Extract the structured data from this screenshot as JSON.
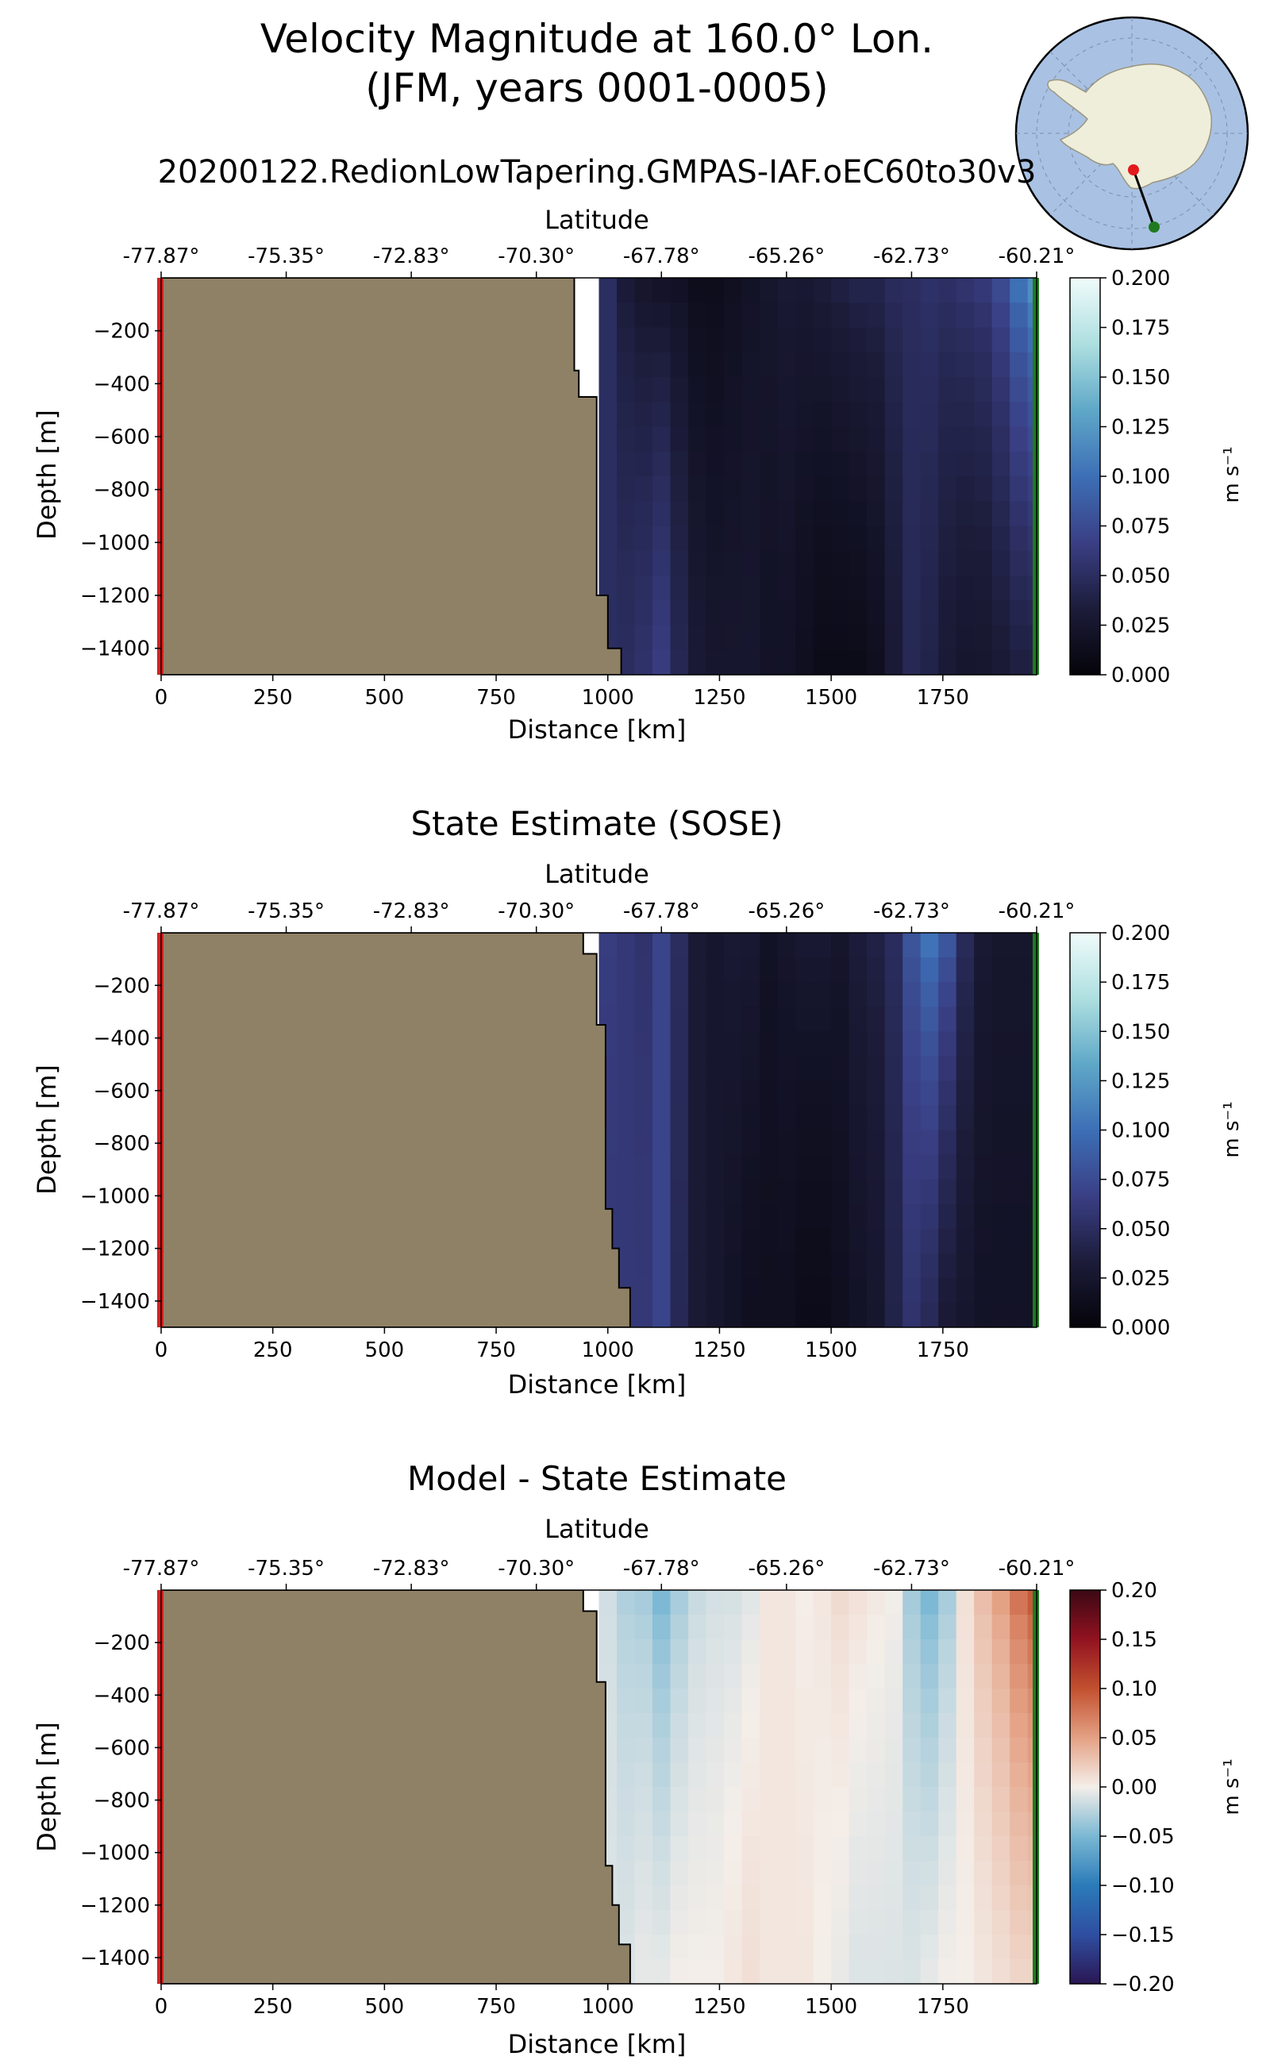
{
  "figure": {
    "title_line1": "Velocity Magnitude at 160.0° Lon.",
    "title_line2": "(JFM, years 0001-0005)",
    "colors": {
      "land": "#8f8165",
      "start_marker": "#d62020",
      "end_marker": "#1f7a1f",
      "ocean_map": "#a9c1e3",
      "antarctica": "#efeeda",
      "speed_cmap": [
        "#05040a",
        "#1c1c3a",
        "#3a3f85",
        "#3d6fb6",
        "#5fa8c8",
        "#aedfe0",
        "#f0fbfb"
      ],
      "diff_cmap": [
        "#2a1753",
        "#2f4ea1",
        "#2b7bb9",
        "#7ab8d3",
        "#f4eee9",
        "#e4a184",
        "#c2502f",
        "#921220",
        "#3b0814"
      ]
    }
  },
  "inset_map": {
    "projection": "south-polar-stereographic",
    "section_start": "red-dot",
    "section_end": "green-dot"
  },
  "chart_data": [
    {
      "type": "heatmap",
      "title": "20200122.RedionLowTapering.GMPAS-IAF.oEC60to30v3",
      "xlabel": "Distance [km]",
      "xlabel_top": "Latitude",
      "ylabel": "Depth [m]",
      "xlim": [
        0,
        1960
      ],
      "ylim": [
        -1500,
        0
      ],
      "x_ticks": [
        0,
        250,
        500,
        750,
        1000,
        1250,
        1500,
        1750
      ],
      "x_tick_labels": [
        "0",
        "250",
        "500",
        "750",
        "1000",
        "1250",
        "1500",
        "1750"
      ],
      "lat_ticks_km": [
        0,
        280,
        560,
        840,
        1120,
        1400,
        1680,
        1960
      ],
      "lat_tick_labels": [
        "-77.87°",
        "-75.35°",
        "-72.83°",
        "-70.30°",
        "-67.78°",
        "-65.26°",
        "-62.73°",
        "-60.21°"
      ],
      "y_ticks": [
        -200,
        -400,
        -600,
        -800,
        -1000,
        -1200,
        -1400
      ],
      "y_tick_labels": [
        "−200",
        "−400",
        "−600",
        "−800",
        "−1000",
        "−1200",
        "−1400"
      ],
      "colorbar": {
        "label": "m s⁻¹",
        "range": [
          0,
          0.2
        ],
        "ticks": [
          "0.000",
          "0.025",
          "0.050",
          "0.075",
          "0.100",
          "0.125",
          "0.150",
          "0.175",
          "0.200"
        ],
        "cmap": "speed"
      },
      "land_profile": [
        [
          0,
          925
        ],
        [
          -350,
          925
        ],
        [
          -350,
          935
        ],
        [
          -450,
          935
        ],
        [
          -450,
          975
        ],
        [
          -1200,
          975
        ],
        [
          -1200,
          1000
        ],
        [
          -1400,
          1000
        ],
        [
          -1400,
          1030
        ],
        [
          -1500,
          1030
        ]
      ],
      "profiles": {
        "x": [
          1000,
          1040,
          1080,
          1120,
          1160,
          1200,
          1240,
          1280,
          1320,
          1360,
          1400,
          1440,
          1480,
          1520,
          1560,
          1600,
          1640,
          1680,
          1720,
          1760,
          1800,
          1840,
          1880,
          1920,
          1960
        ],
        "top": [
          0.05,
          0.03,
          0.02,
          0.015,
          0.015,
          0.01,
          0.01,
          0.015,
          0.02,
          0.025,
          0.03,
          0.03,
          0.035,
          0.04,
          0.045,
          0.045,
          0.05,
          0.05,
          0.055,
          0.055,
          0.06,
          0.065,
          0.08,
          0.11,
          0.13
        ],
        "bottom": [
          0.05,
          0.05,
          0.055,
          0.065,
          0.045,
          0.03,
          0.025,
          0.025,
          0.025,
          0.02,
          0.02,
          0.015,
          0.01,
          0.01,
          0.01,
          0.015,
          0.03,
          0.045,
          0.04,
          0.03,
          0.025,
          0.025,
          0.03,
          0.035,
          0.035
        ]
      }
    },
    {
      "type": "heatmap",
      "title": "State Estimate (SOSE)",
      "xlabel": "Distance [km]",
      "xlabel_top": "Latitude",
      "ylabel": "Depth [m]",
      "xlim": [
        0,
        1960
      ],
      "ylim": [
        -1500,
        0
      ],
      "x_ticks": [
        0,
        250,
        500,
        750,
        1000,
        1250,
        1500,
        1750
      ],
      "x_tick_labels": [
        "0",
        "250",
        "500",
        "750",
        "1000",
        "1250",
        "1500",
        "1750"
      ],
      "lat_ticks_km": [
        0,
        280,
        560,
        840,
        1120,
        1400,
        1680,
        1960
      ],
      "lat_tick_labels": [
        "-77.87°",
        "-75.35°",
        "-72.83°",
        "-70.30°",
        "-67.78°",
        "-65.26°",
        "-62.73°",
        "-60.21°"
      ],
      "y_ticks": [
        -200,
        -400,
        -600,
        -800,
        -1000,
        -1200,
        -1400
      ],
      "y_tick_labels": [
        "−200",
        "−400",
        "−600",
        "−800",
        "−1000",
        "−1200",
        "−1400"
      ],
      "colorbar": {
        "label": "m s⁻¹",
        "range": [
          0,
          0.2
        ],
        "ticks": [
          "0.000",
          "0.025",
          "0.050",
          "0.075",
          "0.100",
          "0.125",
          "0.150",
          "0.175",
          "0.200"
        ],
        "cmap": "speed"
      },
      "land_profile": [
        [
          0,
          945
        ],
        [
          -80,
          945
        ],
        [
          -80,
          975
        ],
        [
          -350,
          975
        ],
        [
          -350,
          995
        ],
        [
          -1050,
          995
        ],
        [
          -1050,
          1010
        ],
        [
          -1200,
          1010
        ],
        [
          -1200,
          1025
        ],
        [
          -1350,
          1025
        ],
        [
          -1350,
          1050
        ],
        [
          -1500,
          1050
        ]
      ],
      "profiles": {
        "x": [
          1000,
          1040,
          1080,
          1120,
          1160,
          1200,
          1240,
          1280,
          1320,
          1360,
          1400,
          1440,
          1480,
          1520,
          1560,
          1600,
          1640,
          1680,
          1720,
          1760,
          1800,
          1840,
          1880,
          1920,
          1960
        ],
        "top": [
          0.065,
          0.06,
          0.055,
          0.07,
          0.05,
          0.03,
          0.025,
          0.03,
          0.03,
          0.02,
          0.025,
          0.03,
          0.03,
          0.025,
          0.035,
          0.04,
          0.05,
          0.085,
          0.11,
          0.09,
          0.05,
          0.03,
          0.025,
          0.025,
          0.025
        ],
        "bottom": [
          0.06,
          0.06,
          0.06,
          0.07,
          0.045,
          0.03,
          0.025,
          0.02,
          0.015,
          0.015,
          0.015,
          0.01,
          0.01,
          0.015,
          0.02,
          0.025,
          0.04,
          0.055,
          0.045,
          0.03,
          0.025,
          0.02,
          0.02,
          0.02,
          0.02
        ]
      }
    },
    {
      "type": "heatmap",
      "title": "Model - State Estimate",
      "xlabel": "Distance [km]",
      "xlabel_top": "Latitude",
      "ylabel": "Depth [m]",
      "xlim": [
        0,
        1960
      ],
      "ylim": [
        -1500,
        0
      ],
      "x_ticks": [
        0,
        250,
        500,
        750,
        1000,
        1250,
        1500,
        1750
      ],
      "x_tick_labels": [
        "0",
        "250",
        "500",
        "750",
        "1000",
        "1250",
        "1500",
        "1750"
      ],
      "lat_ticks_km": [
        0,
        280,
        560,
        840,
        1120,
        1400,
        1680,
        1960
      ],
      "lat_tick_labels": [
        "-77.87°",
        "-75.35°",
        "-72.83°",
        "-70.30°",
        "-67.78°",
        "-65.26°",
        "-62.73°",
        "-60.21°"
      ],
      "y_ticks": [
        -200,
        -400,
        -600,
        -800,
        -1000,
        -1200,
        -1400
      ],
      "y_tick_labels": [
        "−200",
        "−400",
        "−600",
        "−800",
        "−1000",
        "−1200",
        "−1400"
      ],
      "colorbar": {
        "label": "m s⁻¹",
        "range": [
          -0.2,
          0.2
        ],
        "ticks": [
          "−0.20",
          "−0.15",
          "−0.10",
          "−0.05",
          "0.00",
          "0.05",
          "0.10",
          "0.15",
          "0.20"
        ],
        "cmap": "diff"
      },
      "land_profile": [
        [
          0,
          945
        ],
        [
          -80,
          945
        ],
        [
          -80,
          975
        ],
        [
          -350,
          975
        ],
        [
          -350,
          995
        ],
        [
          -1050,
          995
        ],
        [
          -1050,
          1010
        ],
        [
          -1200,
          1010
        ],
        [
          -1200,
          1025
        ],
        [
          -1350,
          1025
        ],
        [
          -1350,
          1050
        ],
        [
          -1500,
          1050
        ]
      ],
      "profiles": {
        "x": [
          1000,
          1040,
          1080,
          1120,
          1160,
          1200,
          1240,
          1280,
          1320,
          1360,
          1400,
          1440,
          1480,
          1520,
          1560,
          1600,
          1640,
          1680,
          1720,
          1760,
          1800,
          1840,
          1880,
          1920,
          1960
        ],
        "top": [
          -0.015,
          -0.03,
          -0.035,
          -0.055,
          -0.035,
          -0.02,
          -0.015,
          -0.015,
          -0.01,
          0.005,
          0.005,
          0.0,
          0.005,
          0.015,
          0.01,
          0.005,
          0.0,
          -0.035,
          -0.055,
          -0.035,
          0.01,
          0.035,
          0.055,
          0.085,
          0.105
        ],
        "bottom": [
          -0.01,
          -0.01,
          -0.005,
          -0.005,
          0.0,
          0.0,
          0.0,
          0.005,
          0.01,
          0.005,
          0.005,
          0.005,
          0.0,
          -0.005,
          -0.01,
          -0.01,
          -0.01,
          -0.01,
          -0.005,
          0.0,
          0.0,
          0.005,
          0.01,
          0.015,
          0.015
        ]
      }
    }
  ]
}
